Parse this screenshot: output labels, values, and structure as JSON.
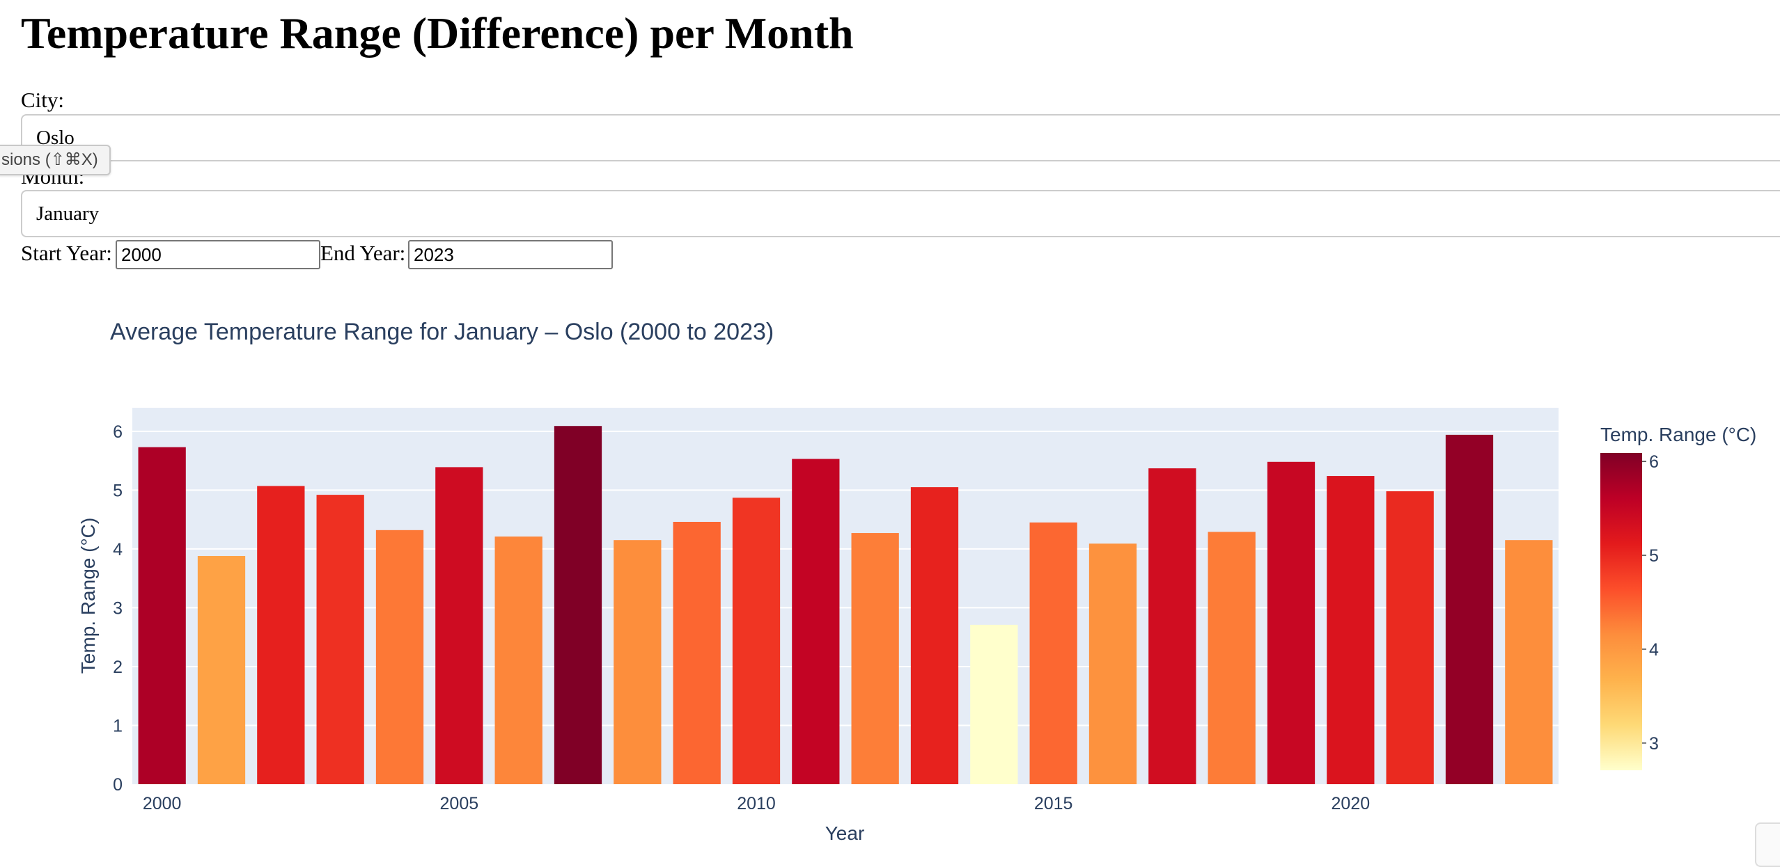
{
  "page": {
    "title": "Temperature Range (Difference) per Month"
  },
  "tooltip": {
    "text": "sions (⇧⌘X)"
  },
  "filters": {
    "city_label": "City:",
    "city_value": "Oslo",
    "month_label": "Month:",
    "month_value": "January",
    "start_year_label": "Start Year:",
    "start_year_value": "2000",
    "end_year_label": "End Year:",
    "end_year_value": "2023"
  },
  "chart_data": {
    "type": "bar",
    "title": "Average Temperature Range for January – Oslo (2000 to 2023)",
    "xlabel": "Year",
    "ylabel": "Temp. Range (°C)",
    "x": [
      2000,
      2001,
      2002,
      2003,
      2004,
      2005,
      2006,
      2007,
      2008,
      2009,
      2010,
      2011,
      2012,
      2013,
      2014,
      2015,
      2016,
      2017,
      2018,
      2019,
      2020,
      2021,
      2022,
      2023
    ],
    "values": [
      5.73,
      3.88,
      5.07,
      4.92,
      4.32,
      5.39,
      4.21,
      6.09,
      4.15,
      4.46,
      4.87,
      5.53,
      4.27,
      5.05,
      2.71,
      4.45,
      4.09,
      5.37,
      4.29,
      5.48,
      5.24,
      4.98,
      5.94,
      4.15
    ],
    "xticks": [
      "2000",
      "2005",
      "2010",
      "2015",
      "2020"
    ],
    "ylim": [
      0,
      6.4
    ],
    "yticks": [
      "0",
      "1",
      "2",
      "3",
      "4",
      "5",
      "6"
    ],
    "colorbar": {
      "title": "Temp. Range (°C)",
      "ticks": [
        "3",
        "4",
        "5",
        "6"
      ],
      "min": 2.71,
      "max": 6.09,
      "colorscale": [
        "#ffffcc",
        "#fed976",
        "#feb24c",
        "#fd8d3c",
        "#fc4e2a",
        "#e31a1c",
        "#bd0026",
        "#800026"
      ]
    },
    "plot_bg": "#e5ecf6",
    "text_color": "#2a3f5f",
    "grid": true
  }
}
